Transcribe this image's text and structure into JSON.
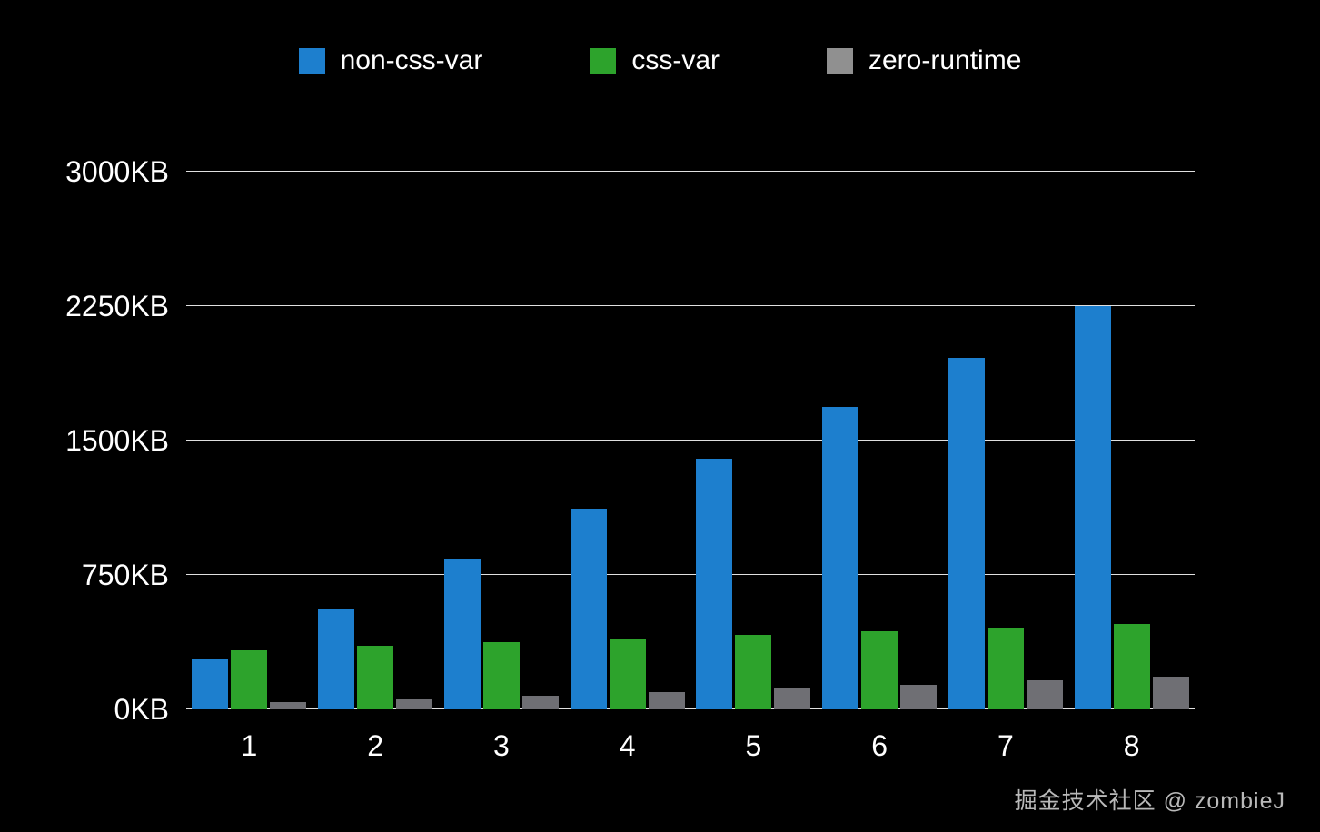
{
  "legend": [
    {
      "label": "non-css-var",
      "color": "#1d7fce"
    },
    {
      "label": "css-var",
      "color": "#2da32c"
    },
    {
      "label": "zero-runtime",
      "color": "#909090"
    }
  ],
  "watermark": "掘金技术社区 @ zombieJ",
  "chart_data": {
    "type": "bar",
    "title": "",
    "xlabel": "",
    "ylabel": "",
    "categories": [
      "1",
      "2",
      "3",
      "4",
      "5",
      "6",
      "7",
      "8"
    ],
    "series": [
      {
        "name": "non-css-var",
        "color": "#1d7fce",
        "values": [
          280,
          560,
          840,
          1120,
          1400,
          1690,
          1960,
          2250
        ]
      },
      {
        "name": "css-var",
        "color": "#2da32c",
        "values": [
          330,
          355,
          375,
          395,
          415,
          435,
          455,
          475
        ]
      },
      {
        "name": "zero-runtime",
        "color": "#6f6f74",
        "values": [
          40,
          55,
          75,
          95,
          115,
          135,
          160,
          185
        ]
      }
    ],
    "yticks": [
      {
        "value": 0,
        "label": "0KB"
      },
      {
        "value": 750,
        "label": "750KB"
      },
      {
        "value": 1500,
        "label": "1500KB"
      },
      {
        "value": 2250,
        "label": "2250KB"
      },
      {
        "value": 3000,
        "label": "3000KB"
      }
    ],
    "ylim": [
      0,
      3000
    ],
    "grid": true,
    "legend_position": "top"
  }
}
